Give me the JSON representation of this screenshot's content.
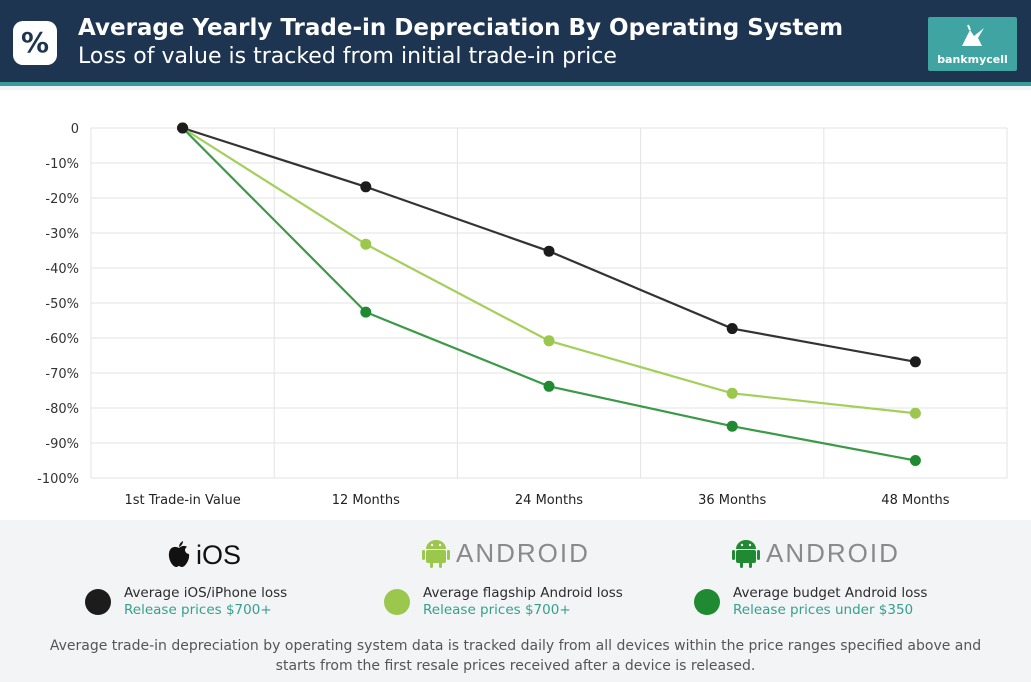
{
  "header": {
    "badge_symbol": "%",
    "title": "Average Yearly Trade-in Depreciation By Operating System",
    "subtitle": "Loss of value is tracked from initial trade-in price",
    "brand": "bankmycell"
  },
  "chart_data": {
    "type": "line",
    "title": "Average Yearly Trade-in Depreciation By Operating System",
    "subtitle": "Loss of value is tracked from initial trade-in price",
    "categories": [
      "1st Trade-in Value",
      "12 Months",
      "24 Months",
      "36 Months",
      "48 Months"
    ],
    "y_ticks": [
      "0",
      "-10%",
      "-20%",
      "-30%",
      "-40%",
      "-50%",
      "-60%",
      "-70%",
      "-80%",
      "-90%",
      "-100%"
    ],
    "ylim": [
      -100,
      0
    ],
    "grid": true,
    "series": [
      {
        "name": "Average iOS/iPhone loss",
        "color": "#1c1c1c",
        "line_color": "#333333",
        "values": [
          0,
          -16.8,
          -35.2,
          -57.3,
          -66.8
        ]
      },
      {
        "name": "Average flagship Android loss",
        "color": "#9bc74c",
        "line_color": "#a4cf5a",
        "values": [
          0,
          -33.2,
          -60.8,
          -75.8,
          -81.5
        ]
      },
      {
        "name": "Average budget Android loss",
        "color": "#1f8a32",
        "line_color": "#3a9a47",
        "values": [
          0,
          -52.6,
          -73.8,
          -85.2,
          -95.0
        ]
      }
    ]
  },
  "legend": {
    "os": [
      {
        "label": "iOS",
        "icon": "apple-icon"
      },
      {
        "label": "ANDROID",
        "icon": "android-icon"
      },
      {
        "label": "ANDROID",
        "icon": "android-icon"
      }
    ],
    "items": [
      {
        "name": "Average iOS/iPhone loss",
        "price": "Release prices $700+",
        "color": "#1c1c1c"
      },
      {
        "name": "Average flagship Android loss",
        "price": "Release prices $700+",
        "color": "#9bc74c"
      },
      {
        "name": "Average budget Android loss",
        "price": "Release prices under $350",
        "color": "#1f8a32"
      }
    ]
  },
  "footnote": "Average trade-in depreciation by operating system data is tracked daily from all devices within the price ranges specified above and starts from the first resale prices received after a device is released."
}
